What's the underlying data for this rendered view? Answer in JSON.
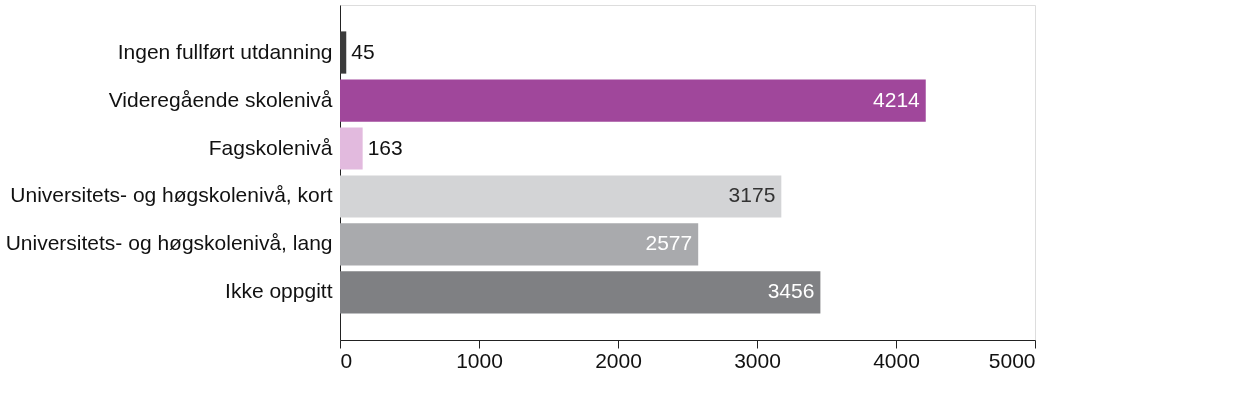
{
  "chart_data": {
    "type": "bar",
    "orientation": "horizontal",
    "categories": [
      "Ingen fullført utdanning",
      "Videregående skolenivå",
      "Fagskolenivå",
      "Universitets- og høgskolenivå, kort",
      "Universitets- og høgskolenivå, lang",
      "Ikke oppgitt"
    ],
    "values": [
      45,
      4214,
      163,
      3175,
      2577,
      3456
    ],
    "colors": [
      "#3b3b3b",
      "#a0479b",
      "#e2bade",
      "#d3d4d6",
      "#a9aaad",
      "#7f8083"
    ],
    "xlim": [
      0,
      5000
    ],
    "xticks": [
      0,
      1000,
      2000,
      3000,
      4000,
      5000
    ],
    "data_labels": true,
    "grid": false
  }
}
